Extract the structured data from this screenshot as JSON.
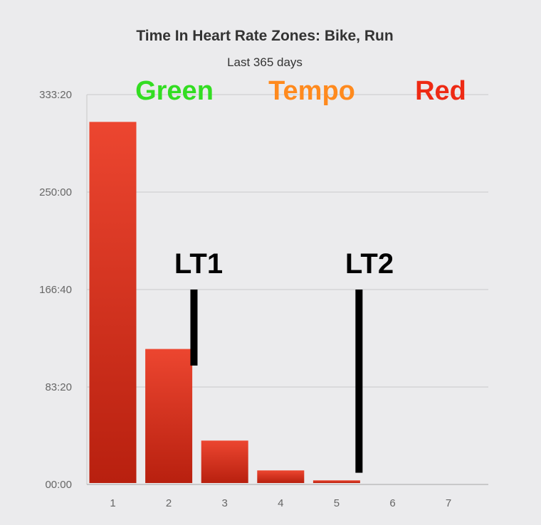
{
  "chart_data": {
    "type": "bar",
    "title": "Time In Heart Rate Zones: Bike, Run",
    "subtitle": "Last 365 days",
    "categories": [
      "1",
      "2",
      "3",
      "4",
      "5",
      "6",
      "7"
    ],
    "values_seconds": [
      18600,
      6950,
      2250,
      720,
      210,
      60,
      0
    ],
    "ylim_seconds": [
      0,
      20000
    ],
    "yticks": [
      {
        "label": "00:00",
        "value": 0
      },
      {
        "label": "83:20",
        "value": 5000
      },
      {
        "label": "166:40",
        "value": 10000
      },
      {
        "label": "250:00",
        "value": 15000
      },
      {
        "label": "333:20",
        "value": 20000
      }
    ],
    "grid": true,
    "bar_color": "#e03a24",
    "annotations": [
      {
        "text": "Green",
        "color": "#33dd22"
      },
      {
        "text": "Tempo",
        "color": "#ff8a1e"
      },
      {
        "text": "Red",
        "color": "#ee2a14"
      }
    ],
    "threshold_markers": [
      {
        "text": "LT1",
        "x_position": 2.45,
        "y_top": 10000,
        "y_bottom": 6100
      },
      {
        "text": "LT2",
        "x_position": 5.4,
        "y_top": 10000,
        "y_bottom": 600
      }
    ]
  }
}
